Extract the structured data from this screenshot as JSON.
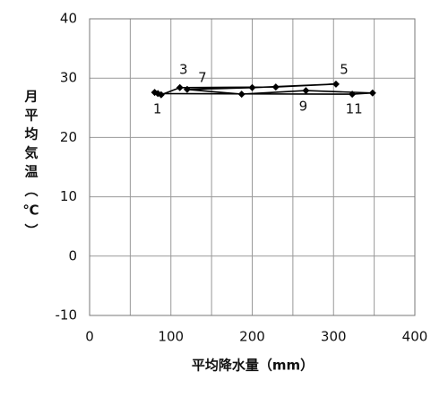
{
  "chart_data": {
    "type": "line",
    "x_label": "平均降水量（mm）",
    "y_label": "月平均気温（℃）",
    "series": [
      {
        "color": "#000000",
        "x": [
          80,
          88,
          111,
          229,
          303,
          200,
          120,
          187,
          266,
          348,
          323,
          84
        ],
        "values": [
          27.6,
          27.2,
          28.4,
          28.5,
          29.0,
          28.4,
          28.1,
          27.3,
          27.9,
          27.5,
          27.3,
          27.4
        ],
        "point_labels": [
          "1",
          null,
          "3",
          null,
          "5",
          null,
          "7",
          null,
          "9",
          null,
          "11",
          null
        ]
      }
    ],
    "xlim": [
      0,
      400
    ],
    "xticks": [
      0,
      100,
      200,
      300,
      400
    ],
    "x_minor_grid": [
      50,
      150,
      250,
      350
    ],
    "ylim": [
      -10,
      40
    ],
    "yticks": [
      -10,
      0,
      10,
      20,
      30,
      40
    ],
    "grid": true
  }
}
